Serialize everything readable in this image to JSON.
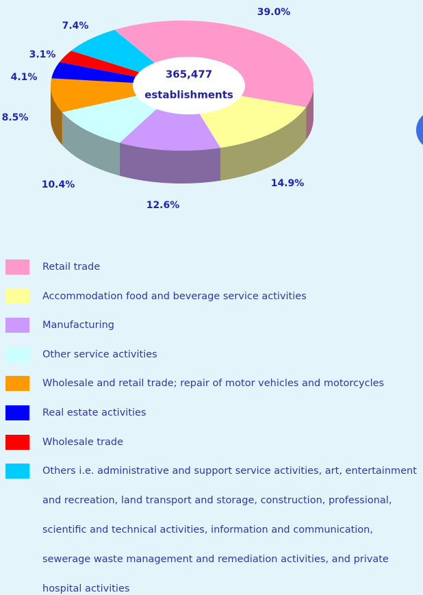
{
  "chart_data": {
    "type": "pie",
    "categories": [
      "Retail trade",
      "Accommodation food and beverage service activities",
      "Manufacturing",
      "Other service activities",
      "Wholesale and retail trade; repair of motor vehicles and motorcycles",
      "Real estate activities",
      "Wholesale trade",
      "Others i.e. administrative and support service activities, art, entertainment and recreation, land transport and storage, construction, professional, scientific and technical activities, information and communication, sewerage waste management and remediation activities, and private hospital activities"
    ],
    "values": [
      39.0,
      14.9,
      12.6,
      10.4,
      8.5,
      4.1,
      3.1,
      7.4
    ],
    "value_labels": [
      "39.0%",
      "14.9%",
      "12.6%",
      "10.4%",
      "8.5%",
      "4.1%",
      "3.1%",
      "7.4%"
    ],
    "colors": [
      "#ff99cc",
      "#ffff99",
      "#cc99ff",
      "#ccffff",
      "#ff9900",
      "#0000ff",
      "#ff0000",
      "#00ccff"
    ],
    "center_label": [
      "365,477",
      "establishments"
    ]
  }
}
